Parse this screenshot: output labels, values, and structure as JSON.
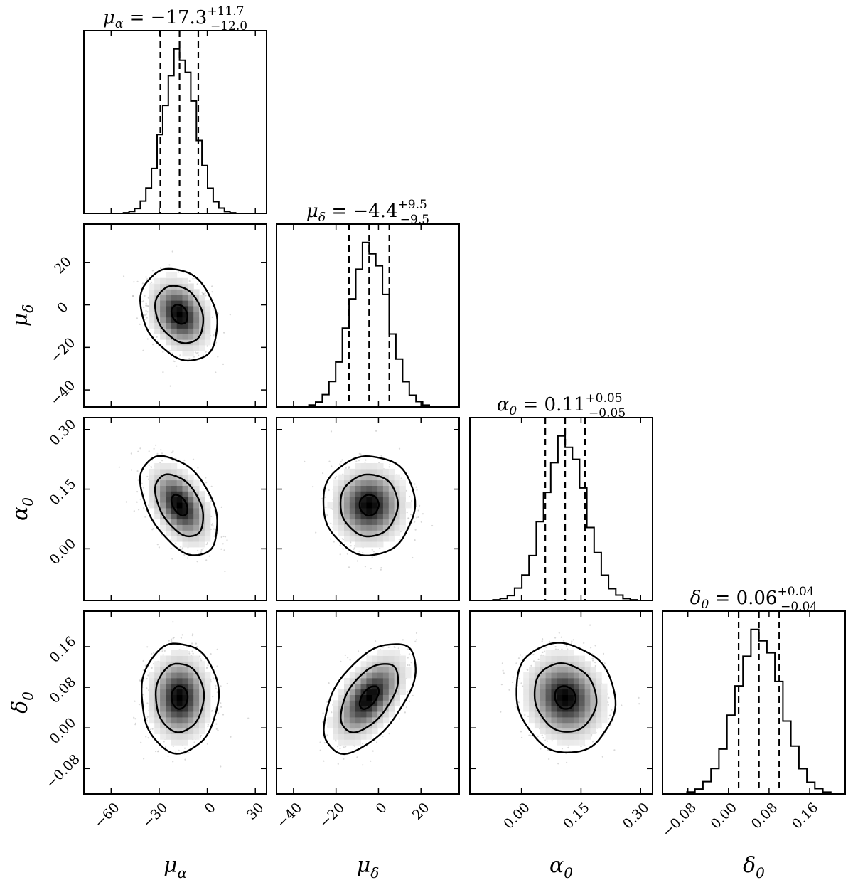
{
  "chart_data": {
    "type": "corner",
    "parameters": [
      {
        "symbol": "μ",
        "subscript": "α",
        "range": [
          -77,
          37
        ],
        "ticks": [
          -60,
          -30,
          0,
          30
        ],
        "tick_labels": [
          "−60",
          "−30",
          "0",
          "30"
        ],
        "title_value": "−17.3",
        "title_plus": "+11.7",
        "title_minus": "−12.0",
        "median": -17.3,
        "plus": 11.7,
        "minus": 12.0,
        "sigma": 10.0,
        "hist_max": 0.88
      },
      {
        "symbol": "μ",
        "subscript": "δ",
        "range": [
          -48,
          38
        ],
        "ticks": [
          -40,
          -20,
          0,
          20
        ],
        "tick_labels": [
          "−40",
          "−20",
          "0",
          "20"
        ],
        "title_value": "−4.4",
        "title_plus": "+9.5",
        "title_minus": "−9.5",
        "median": -4.4,
        "plus": 9.5,
        "minus": 9.5,
        "sigma": 9.0,
        "hist_max": 0.88
      },
      {
        "symbol": "α",
        "subscript": "0",
        "range": [
          -0.13,
          0.33
        ],
        "ticks": [
          0.0,
          0.15,
          0.3
        ],
        "tick_labels": [
          "0.00",
          "0.15",
          "0.30"
        ],
        "title_value": "0.11",
        "title_plus": "+0.05",
        "title_minus": "−0.05",
        "median": 0.11,
        "plus": 0.05,
        "minus": 0.05,
        "sigma": 0.052,
        "hist_max": 0.88
      },
      {
        "symbol": "δ",
        "subscript": "0",
        "range": [
          -0.13,
          0.23
        ],
        "ticks": [
          -0.08,
          0.0,
          0.08,
          0.16
        ],
        "tick_labels": [
          "−0.08",
          "0.00",
          "0.08",
          "0.16"
        ],
        "title_value": "0.06",
        "title_plus": "+0.04",
        "title_minus": "−0.04",
        "median": 0.06,
        "plus": 0.04,
        "minus": 0.04,
        "sigma": 0.045,
        "hist_max": 0.88
      }
    ],
    "correlations": [
      {
        "row": 1,
        "col": 0,
        "rho": -0.25
      },
      {
        "row": 2,
        "col": 0,
        "rho": -0.45
      },
      {
        "row": 2,
        "col": 1,
        "rho": 0.0
      },
      {
        "row": 3,
        "col": 0,
        "rho": 0.0
      },
      {
        "row": 3,
        "col": 1,
        "rho": 0.55
      },
      {
        "row": 3,
        "col": 2,
        "rho": -0.1
      }
    ],
    "contour_levels_sigma": [
      0.5,
      1.5,
      2.4
    ],
    "grid": false,
    "legend": "none"
  }
}
